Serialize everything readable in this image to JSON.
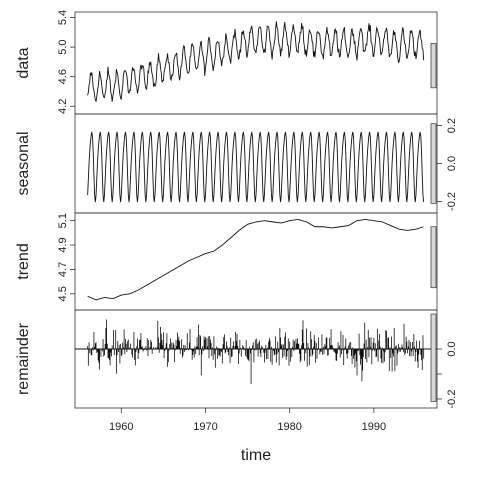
{
  "chart_data": {
    "type": "line",
    "xlabel": "time",
    "xlim": [
      1954.5,
      1997.5
    ],
    "x_ticks": [
      1960,
      1970,
      1980,
      1990
    ],
    "x_tick_labels": [
      "1960",
      "1970",
      "1980",
      "1990"
    ],
    "series_x_start": 1956.0,
    "series_x_end": 1995.9,
    "panels": [
      {
        "name": "data",
        "ylim": [
          4.15,
          5.42
        ],
        "y_ticks": [
          4.2,
          4.6,
          5.0,
          5.4
        ],
        "y_tick_labels": [
          "4.2",
          "4.6",
          "5.0",
          "5.4"
        ],
        "y_axis_side": "left",
        "range_bar": [
          4.45,
          5.05
        ],
        "trend_anchors": [
          [
            1956,
            4.48
          ],
          [
            1957,
            4.45
          ],
          [
            1958,
            4.47
          ],
          [
            1960,
            4.5
          ],
          [
            1962,
            4.58
          ],
          [
            1964,
            4.66
          ],
          [
            1966,
            4.74
          ],
          [
            1968,
            4.82
          ],
          [
            1970,
            4.88
          ],
          [
            1972,
            4.96
          ],
          [
            1974,
            5.04
          ],
          [
            1976,
            5.1
          ],
          [
            1978,
            5.09
          ],
          [
            1980,
            5.11
          ],
          [
            1982,
            5.1
          ],
          [
            1983,
            5.05
          ],
          [
            1985,
            5.05
          ],
          [
            1987,
            5.05
          ],
          [
            1989,
            5.1
          ],
          [
            1991,
            5.08
          ],
          [
            1993,
            5.02
          ],
          [
            1995.9,
            5.05
          ]
        ],
        "seasonal_amplitude": 0.18
      },
      {
        "name": "seasonal",
        "ylim": [
          -0.24,
          0.24
        ],
        "y_ticks": [
          -0.2,
          0.0,
          0.2
        ],
        "y_tick_labels": [
          "-0.2",
          "0.0",
          "0.2"
        ],
        "y_axis_side": "right",
        "range_bar": [
          -0.21,
          0.21
        ],
        "cycles": 40,
        "amplitude": 0.21
      },
      {
        "name": "trend",
        "ylim": [
          4.4,
          5.13
        ],
        "y_ticks": [
          4.5,
          4.7,
          4.9,
          5.1
        ],
        "y_tick_labels": [
          "4.5",
          "4.7",
          "4.9",
          "5.1"
        ],
        "y_axis_side": "left",
        "range_bar": [
          4.55,
          5.05
        ],
        "points": [
          [
            1956,
            4.48
          ],
          [
            1957,
            4.45
          ],
          [
            1958,
            4.47
          ],
          [
            1959,
            4.46
          ],
          [
            1960,
            4.49
          ],
          [
            1961,
            4.5
          ],
          [
            1962,
            4.53
          ],
          [
            1963,
            4.57
          ],
          [
            1964,
            4.61
          ],
          [
            1965,
            4.65
          ],
          [
            1966,
            4.69
          ],
          [
            1967,
            4.73
          ],
          [
            1968,
            4.77
          ],
          [
            1969,
            4.8
          ],
          [
            1970,
            4.83
          ],
          [
            1971,
            4.85
          ],
          [
            1972,
            4.9
          ],
          [
            1973,
            4.96
          ],
          [
            1974,
            5.02
          ],
          [
            1975,
            5.07
          ],
          [
            1976,
            5.09
          ],
          [
            1977,
            5.1
          ],
          [
            1978,
            5.09
          ],
          [
            1979,
            5.08
          ],
          [
            1980,
            5.1
          ],
          [
            1981,
            5.11
          ],
          [
            1982,
            5.09
          ],
          [
            1983,
            5.05
          ],
          [
            1984,
            5.05
          ],
          [
            1985,
            5.04
          ],
          [
            1986,
            5.05
          ],
          [
            1987,
            5.06
          ],
          [
            1988,
            5.1
          ],
          [
            1989,
            5.11
          ],
          [
            1990,
            5.1
          ],
          [
            1991,
            5.09
          ],
          [
            1992,
            5.06
          ],
          [
            1993,
            5.03
          ],
          [
            1994,
            5.02
          ],
          [
            1995,
            5.03
          ],
          [
            1995.9,
            5.05
          ]
        ]
      },
      {
        "name": "remainder",
        "ylim": [
          -0.22,
          0.14
        ],
        "y_ticks": [
          -0.2,
          -0.1,
          0.0
        ],
        "y_tick_labels": [
          "-0.2",
          "",
          "0.0"
        ],
        "y_axis_side": "right",
        "range_bar": [
          -0.21,
          0.14
        ],
        "baseline": 0.0,
        "spread": 0.08
      }
    ],
    "grid": false,
    "legend": "none"
  }
}
